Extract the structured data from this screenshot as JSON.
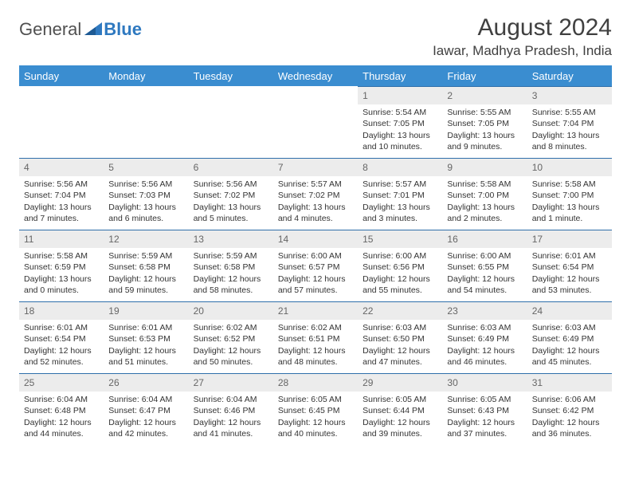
{
  "logo": {
    "text1": "General",
    "text2": "Blue"
  },
  "title": "August 2024",
  "location": "Iawar, Madhya Pradesh, India",
  "day_headers": [
    "Sunday",
    "Monday",
    "Tuesday",
    "Wednesday",
    "Thursday",
    "Friday",
    "Saturday"
  ],
  "colors": {
    "header_bg": "#3a8dd0",
    "header_text": "#ffffff",
    "cell_border": "#2f6faa",
    "daynum_bg": "#ececec",
    "daynum_text": "#666666",
    "body_text": "#333333",
    "logo_gray": "#505050",
    "logo_blue": "#2f79c0"
  },
  "weeks": [
    [
      null,
      null,
      null,
      null,
      {
        "n": "1",
        "sunrise": "Sunrise: 5:54 AM",
        "sunset": "Sunset: 7:05 PM",
        "dl1": "Daylight: 13 hours",
        "dl2": "and 10 minutes."
      },
      {
        "n": "2",
        "sunrise": "Sunrise: 5:55 AM",
        "sunset": "Sunset: 7:05 PM",
        "dl1": "Daylight: 13 hours",
        "dl2": "and 9 minutes."
      },
      {
        "n": "3",
        "sunrise": "Sunrise: 5:55 AM",
        "sunset": "Sunset: 7:04 PM",
        "dl1": "Daylight: 13 hours",
        "dl2": "and 8 minutes."
      }
    ],
    [
      {
        "n": "4",
        "sunrise": "Sunrise: 5:56 AM",
        "sunset": "Sunset: 7:04 PM",
        "dl1": "Daylight: 13 hours",
        "dl2": "and 7 minutes."
      },
      {
        "n": "5",
        "sunrise": "Sunrise: 5:56 AM",
        "sunset": "Sunset: 7:03 PM",
        "dl1": "Daylight: 13 hours",
        "dl2": "and 6 minutes."
      },
      {
        "n": "6",
        "sunrise": "Sunrise: 5:56 AM",
        "sunset": "Sunset: 7:02 PM",
        "dl1": "Daylight: 13 hours",
        "dl2": "and 5 minutes."
      },
      {
        "n": "7",
        "sunrise": "Sunrise: 5:57 AM",
        "sunset": "Sunset: 7:02 PM",
        "dl1": "Daylight: 13 hours",
        "dl2": "and 4 minutes."
      },
      {
        "n": "8",
        "sunrise": "Sunrise: 5:57 AM",
        "sunset": "Sunset: 7:01 PM",
        "dl1": "Daylight: 13 hours",
        "dl2": "and 3 minutes."
      },
      {
        "n": "9",
        "sunrise": "Sunrise: 5:58 AM",
        "sunset": "Sunset: 7:00 PM",
        "dl1": "Daylight: 13 hours",
        "dl2": "and 2 minutes."
      },
      {
        "n": "10",
        "sunrise": "Sunrise: 5:58 AM",
        "sunset": "Sunset: 7:00 PM",
        "dl1": "Daylight: 13 hours",
        "dl2": "and 1 minute."
      }
    ],
    [
      {
        "n": "11",
        "sunrise": "Sunrise: 5:58 AM",
        "sunset": "Sunset: 6:59 PM",
        "dl1": "Daylight: 13 hours",
        "dl2": "and 0 minutes."
      },
      {
        "n": "12",
        "sunrise": "Sunrise: 5:59 AM",
        "sunset": "Sunset: 6:58 PM",
        "dl1": "Daylight: 12 hours",
        "dl2": "and 59 minutes."
      },
      {
        "n": "13",
        "sunrise": "Sunrise: 5:59 AM",
        "sunset": "Sunset: 6:58 PM",
        "dl1": "Daylight: 12 hours",
        "dl2": "and 58 minutes."
      },
      {
        "n": "14",
        "sunrise": "Sunrise: 6:00 AM",
        "sunset": "Sunset: 6:57 PM",
        "dl1": "Daylight: 12 hours",
        "dl2": "and 57 minutes."
      },
      {
        "n": "15",
        "sunrise": "Sunrise: 6:00 AM",
        "sunset": "Sunset: 6:56 PM",
        "dl1": "Daylight: 12 hours",
        "dl2": "and 55 minutes."
      },
      {
        "n": "16",
        "sunrise": "Sunrise: 6:00 AM",
        "sunset": "Sunset: 6:55 PM",
        "dl1": "Daylight: 12 hours",
        "dl2": "and 54 minutes."
      },
      {
        "n": "17",
        "sunrise": "Sunrise: 6:01 AM",
        "sunset": "Sunset: 6:54 PM",
        "dl1": "Daylight: 12 hours",
        "dl2": "and 53 minutes."
      }
    ],
    [
      {
        "n": "18",
        "sunrise": "Sunrise: 6:01 AM",
        "sunset": "Sunset: 6:54 PM",
        "dl1": "Daylight: 12 hours",
        "dl2": "and 52 minutes."
      },
      {
        "n": "19",
        "sunrise": "Sunrise: 6:01 AM",
        "sunset": "Sunset: 6:53 PM",
        "dl1": "Daylight: 12 hours",
        "dl2": "and 51 minutes."
      },
      {
        "n": "20",
        "sunrise": "Sunrise: 6:02 AM",
        "sunset": "Sunset: 6:52 PM",
        "dl1": "Daylight: 12 hours",
        "dl2": "and 50 minutes."
      },
      {
        "n": "21",
        "sunrise": "Sunrise: 6:02 AM",
        "sunset": "Sunset: 6:51 PM",
        "dl1": "Daylight: 12 hours",
        "dl2": "and 48 minutes."
      },
      {
        "n": "22",
        "sunrise": "Sunrise: 6:03 AM",
        "sunset": "Sunset: 6:50 PM",
        "dl1": "Daylight: 12 hours",
        "dl2": "and 47 minutes."
      },
      {
        "n": "23",
        "sunrise": "Sunrise: 6:03 AM",
        "sunset": "Sunset: 6:49 PM",
        "dl1": "Daylight: 12 hours",
        "dl2": "and 46 minutes."
      },
      {
        "n": "24",
        "sunrise": "Sunrise: 6:03 AM",
        "sunset": "Sunset: 6:49 PM",
        "dl1": "Daylight: 12 hours",
        "dl2": "and 45 minutes."
      }
    ],
    [
      {
        "n": "25",
        "sunrise": "Sunrise: 6:04 AM",
        "sunset": "Sunset: 6:48 PM",
        "dl1": "Daylight: 12 hours",
        "dl2": "and 44 minutes."
      },
      {
        "n": "26",
        "sunrise": "Sunrise: 6:04 AM",
        "sunset": "Sunset: 6:47 PM",
        "dl1": "Daylight: 12 hours",
        "dl2": "and 42 minutes."
      },
      {
        "n": "27",
        "sunrise": "Sunrise: 6:04 AM",
        "sunset": "Sunset: 6:46 PM",
        "dl1": "Daylight: 12 hours",
        "dl2": "and 41 minutes."
      },
      {
        "n": "28",
        "sunrise": "Sunrise: 6:05 AM",
        "sunset": "Sunset: 6:45 PM",
        "dl1": "Daylight: 12 hours",
        "dl2": "and 40 minutes."
      },
      {
        "n": "29",
        "sunrise": "Sunrise: 6:05 AM",
        "sunset": "Sunset: 6:44 PM",
        "dl1": "Daylight: 12 hours",
        "dl2": "and 39 minutes."
      },
      {
        "n": "30",
        "sunrise": "Sunrise: 6:05 AM",
        "sunset": "Sunset: 6:43 PM",
        "dl1": "Daylight: 12 hours",
        "dl2": "and 37 minutes."
      },
      {
        "n": "31",
        "sunrise": "Sunrise: 6:06 AM",
        "sunset": "Sunset: 6:42 PM",
        "dl1": "Daylight: 12 hours",
        "dl2": "and 36 minutes."
      }
    ]
  ]
}
